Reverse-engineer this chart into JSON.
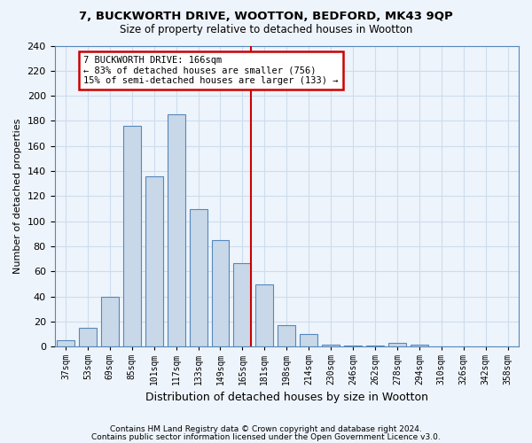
{
  "title_line1": "7, BUCKWORTH DRIVE, WOOTTON, BEDFORD, MK43 9QP",
  "title_line2": "Size of property relative to detached houses in Wootton",
  "xlabel": "Distribution of detached houses by size in Wootton",
  "ylabel": "Number of detached properties",
  "footnote1": "Contains HM Land Registry data © Crown copyright and database right 2024.",
  "footnote2": "Contains public sector information licensed under the Open Government Licence v3.0.",
  "bins": [
    "37sqm",
    "53sqm",
    "69sqm",
    "85sqm",
    "101sqm",
    "117sqm",
    "133sqm",
    "149sqm",
    "165sqm",
    "181sqm",
    "198sqm",
    "214sqm",
    "230sqm",
    "246sqm",
    "262sqm",
    "278sqm",
    "294sqm",
    "310sqm",
    "326sqm",
    "342sqm",
    "358sqm"
  ],
  "bar_heights": [
    5,
    15,
    40,
    176,
    136,
    185,
    110,
    85,
    67,
    50,
    17,
    10,
    2,
    1,
    1,
    3,
    2,
    0,
    0,
    0,
    0
  ],
  "bar_color": "#c8d8e8",
  "bar_edge_color": "#5588bb",
  "grid_color": "#ccddee",
  "background_color": "#eef4fb",
  "vline_color": "#cc0000",
  "annotation_text": "7 BUCKWORTH DRIVE: 166sqm\n← 83% of detached houses are smaller (756)\n15% of semi-detached houses are larger (133) →",
  "annotation_box_color": "#cc0000",
  "ylim": [
    0,
    240
  ],
  "yticks": [
    0,
    20,
    40,
    60,
    80,
    100,
    120,
    140,
    160,
    180,
    200,
    220,
    240
  ]
}
